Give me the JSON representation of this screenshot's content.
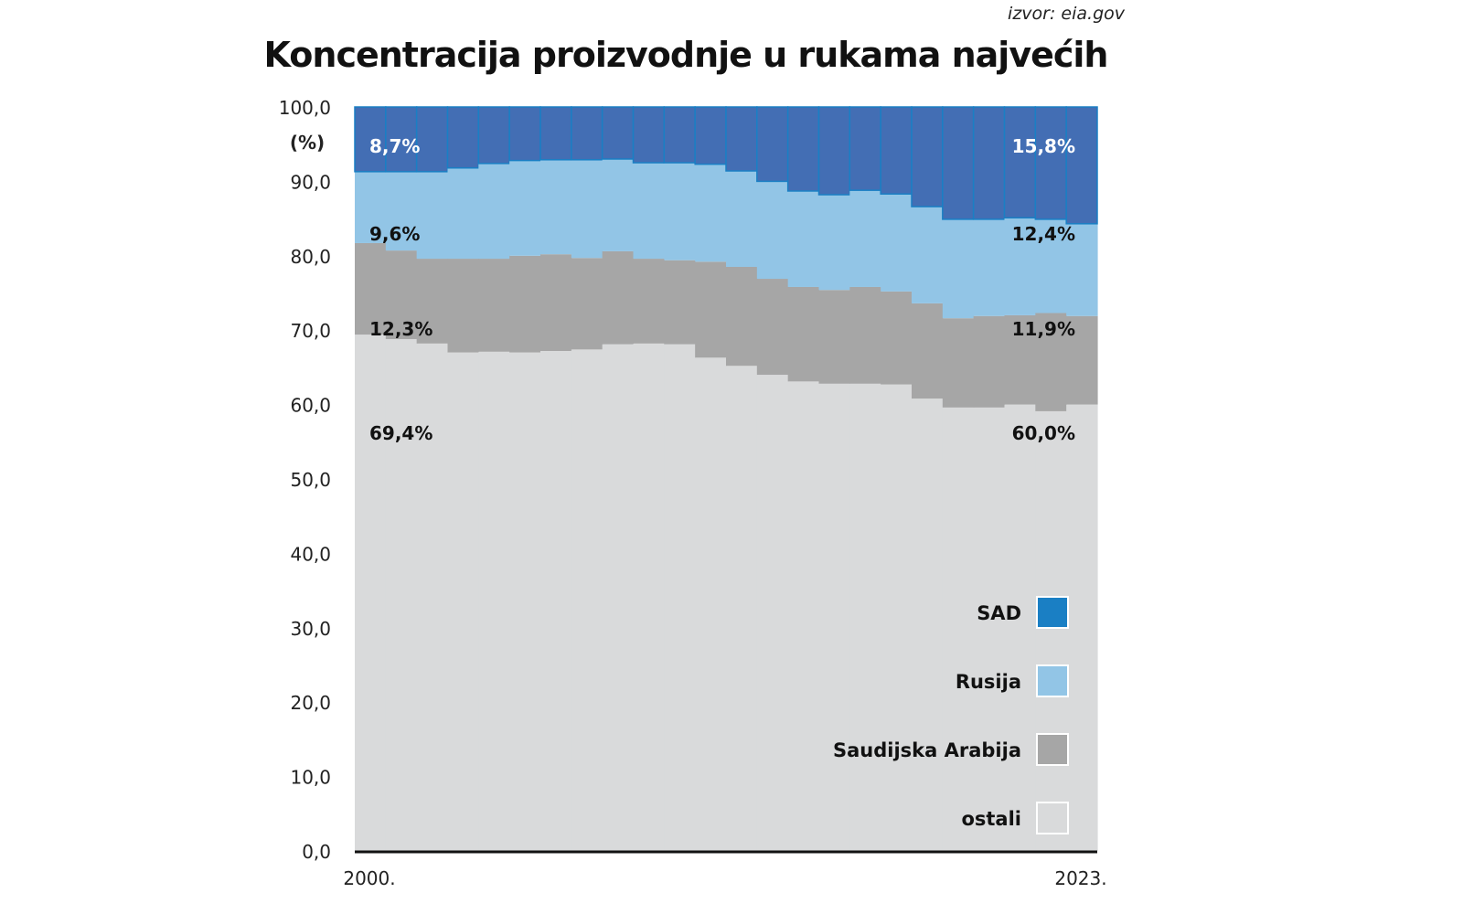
{
  "source": "izvor: eia.gov",
  "title": "Koncentracija proizvodnje u rukama najvećih",
  "chart_data": {
    "type": "area",
    "stacked": true,
    "normalized_percent": true,
    "step": true,
    "title": "Koncentracija proizvodnje u rukama najvećih",
    "ylabel": "(%)",
    "ylim": [
      0,
      100
    ],
    "yticks": [
      "0,0",
      "10,0",
      "20,0",
      "30,0",
      "40,0",
      "50,0",
      "60,0",
      "70,0",
      "80,0",
      "90,0",
      "100,0"
    ],
    "x": [
      2000,
      2001,
      2002,
      2003,
      2004,
      2005,
      2006,
      2007,
      2008,
      2009,
      2010,
      2011,
      2012,
      2013,
      2014,
      2015,
      2016,
      2017,
      2018,
      2019,
      2020,
      2021,
      2022,
      2023
    ],
    "x_tick_labels": [
      "2000.",
      "2023."
    ],
    "legend_position": "bottom-right",
    "series": [
      {
        "name": "ostali",
        "color": "#d9dadb",
        "values": [
          69.4,
          68.8,
          68.2,
          67.0,
          67.1,
          67.0,
          67.2,
          67.4,
          68.1,
          68.2,
          68.1,
          66.3,
          65.2,
          64.0,
          63.1,
          62.8,
          62.8,
          62.7,
          60.8,
          59.6,
          59.6,
          60.0,
          59.1,
          60.0
        ]
      },
      {
        "name": "Saudijska Arabija",
        "color": "#a6a6a6",
        "values": [
          12.3,
          11.9,
          11.4,
          12.6,
          12.5,
          13.0,
          13.0,
          12.3,
          12.5,
          11.4,
          11.3,
          12.9,
          13.3,
          12.9,
          12.7,
          12.6,
          13.0,
          12.5,
          12.8,
          12.0,
          12.3,
          12.0,
          13.2,
          11.9
        ]
      },
      {
        "name": "Rusija",
        "color": "#92c5e6",
        "values": [
          9.6,
          10.6,
          11.7,
          12.2,
          12.8,
          12.8,
          12.7,
          13.2,
          12.4,
          12.9,
          13.1,
          13.1,
          12.9,
          13.1,
          12.9,
          12.8,
          13.0,
          13.1,
          13.0,
          13.3,
          13.0,
          13.1,
          12.6,
          12.4
        ]
      },
      {
        "name": "SAD",
        "color": "#436eb4",
        "values": [
          8.7,
          8.7,
          8.7,
          8.2,
          7.6,
          7.2,
          7.1,
          7.1,
          7.0,
          7.5,
          7.5,
          7.7,
          8.6,
          10.0,
          11.3,
          11.8,
          11.2,
          11.7,
          13.4,
          15.1,
          15.1,
          14.9,
          15.1,
          15.8
        ]
      }
    ],
    "annotations": {
      "start": {
        "SAD": "8,7%",
        "Rusija": "9,6%",
        "Saudijska Arabija": "12,3%",
        "ostali": "69,4%"
      },
      "end": {
        "SAD": "15,8%",
        "Rusija": "12,4%",
        "Saudijska Arabija": "11,9%",
        "ostali": "60,0%"
      }
    },
    "legend": [
      {
        "name": "SAD",
        "color": "#1a7fc4"
      },
      {
        "name": "Rusija",
        "color": "#92c5e6"
      },
      {
        "name": "Saudijska Arabija",
        "color": "#a6a6a6"
      },
      {
        "name": "ostali",
        "color": "#d9dadb"
      }
    ]
  }
}
